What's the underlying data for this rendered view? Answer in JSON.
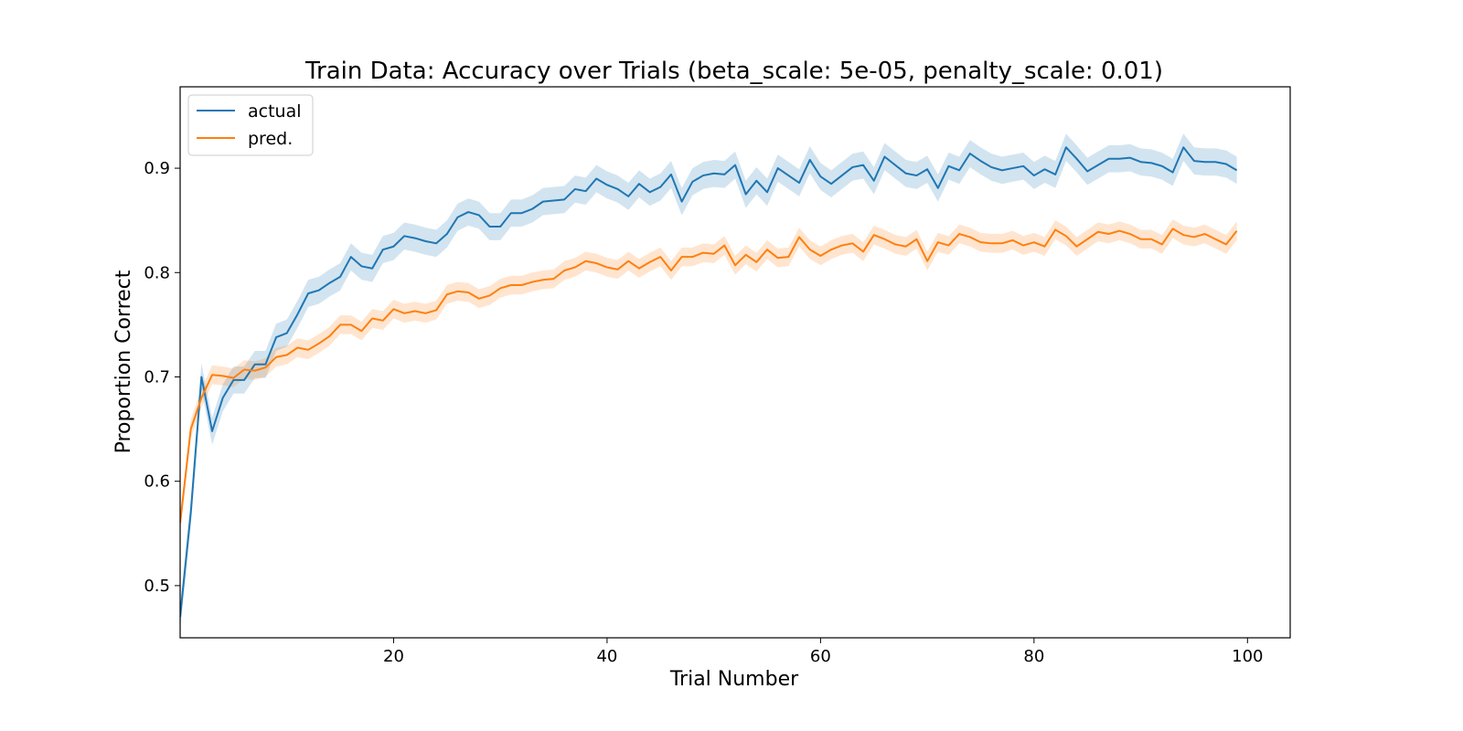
{
  "chart_data": {
    "type": "line",
    "title": "Train Data: Accuracy over Trials (beta_scale: 5e-05, penalty_scale: 0.01)",
    "xlabel": "Trial Number",
    "ylabel": "Proportion Correct",
    "xlim": [
      0,
      104
    ],
    "ylim": [
      0.45,
      0.978
    ],
    "xticks": [
      20,
      40,
      60,
      80,
      100
    ],
    "yticks": [
      0.5,
      0.6,
      0.7,
      0.8,
      0.9
    ],
    "xtick_labels": [
      "20",
      "40",
      "60",
      "80",
      "100"
    ],
    "ytick_labels": [
      "0.5",
      "0.6",
      "0.7",
      "0.8",
      "0.9"
    ],
    "grid": false,
    "legend_position": "top-left",
    "x": [
      0,
      1,
      2,
      3,
      4,
      5,
      6,
      7,
      8,
      9,
      10,
      11,
      12,
      13,
      14,
      15,
      16,
      17,
      18,
      19,
      20,
      21,
      22,
      23,
      24,
      25,
      26,
      27,
      28,
      29,
      30,
      31,
      32,
      33,
      34,
      35,
      36,
      37,
      38,
      39,
      40,
      41,
      42,
      43,
      44,
      45,
      46,
      47,
      48,
      49,
      50,
      51,
      52,
      53,
      54,
      55,
      56,
      57,
      58,
      59,
      60,
      61,
      62,
      63,
      64,
      65,
      66,
      67,
      68,
      69,
      70,
      71,
      72,
      73,
      74,
      75,
      76,
      77,
      78,
      79,
      80,
      81,
      82,
      83,
      84,
      85,
      86,
      87,
      88,
      89,
      90,
      91,
      92,
      93,
      94,
      95,
      96,
      97,
      98,
      99
    ],
    "series": [
      {
        "name": "actual",
        "color": "#1f77b4",
        "band_color": "#1f77b4",
        "band_halfwidth": 0.013,
        "values": [
          0.47,
          0.57,
          0.7,
          0.648,
          0.68,
          0.697,
          0.697,
          0.712,
          0.712,
          0.738,
          0.742,
          0.76,
          0.78,
          0.783,
          0.79,
          0.796,
          0.815,
          0.806,
          0.804,
          0.822,
          0.825,
          0.835,
          0.833,
          0.83,
          0.828,
          0.837,
          0.853,
          0.858,
          0.855,
          0.844,
          0.844,
          0.857,
          0.857,
          0.861,
          0.868,
          0.869,
          0.87,
          0.88,
          0.878,
          0.89,
          0.884,
          0.88,
          0.873,
          0.885,
          0.877,
          0.882,
          0.894,
          0.868,
          0.887,
          0.893,
          0.895,
          0.894,
          0.903,
          0.875,
          0.888,
          0.877,
          0.9,
          0.893,
          0.886,
          0.908,
          0.892,
          0.885,
          0.893,
          0.901,
          0.903,
          0.888,
          0.911,
          0.903,
          0.895,
          0.893,
          0.899,
          0.881,
          0.902,
          0.898,
          0.914,
          0.907,
          0.901,
          0.898,
          0.9,
          0.902,
          0.893,
          0.899,
          0.894,
          0.92,
          0.909,
          0.897,
          0.903,
          0.909,
          0.909,
          0.91,
          0.906,
          0.905,
          0.902,
          0.896,
          0.92,
          0.907,
          0.906,
          0.906,
          0.904,
          0.898
        ]
      },
      {
        "name": "pred.",
        "color": "#ff7f0e",
        "band_color": "#ff7f0e",
        "band_halfwidth": 0.009,
        "values": [
          0.56,
          0.65,
          0.68,
          0.702,
          0.701,
          0.699,
          0.707,
          0.706,
          0.709,
          0.719,
          0.721,
          0.728,
          0.726,
          0.732,
          0.739,
          0.75,
          0.75,
          0.744,
          0.756,
          0.754,
          0.765,
          0.761,
          0.763,
          0.761,
          0.764,
          0.779,
          0.782,
          0.781,
          0.775,
          0.778,
          0.785,
          0.788,
          0.788,
          0.791,
          0.793,
          0.794,
          0.802,
          0.805,
          0.811,
          0.809,
          0.805,
          0.803,
          0.811,
          0.804,
          0.81,
          0.815,
          0.802,
          0.815,
          0.815,
          0.819,
          0.818,
          0.826,
          0.807,
          0.817,
          0.81,
          0.822,
          0.814,
          0.815,
          0.834,
          0.822,
          0.816,
          0.822,
          0.826,
          0.828,
          0.82,
          0.836,
          0.832,
          0.827,
          0.825,
          0.832,
          0.811,
          0.829,
          0.826,
          0.837,
          0.834,
          0.829,
          0.828,
          0.828,
          0.831,
          0.826,
          0.829,
          0.825,
          0.841,
          0.835,
          0.825,
          0.832,
          0.839,
          0.837,
          0.84,
          0.837,
          0.832,
          0.832,
          0.827,
          0.842,
          0.836,
          0.834,
          0.837,
          0.832,
          0.827,
          0.84
        ]
      }
    ]
  }
}
